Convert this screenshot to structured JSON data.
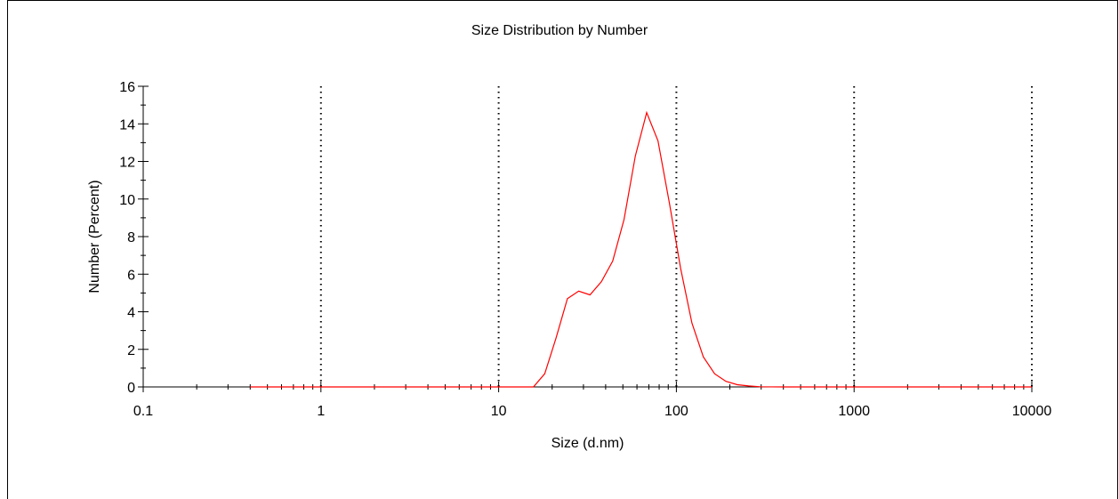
{
  "chart_data": {
    "type": "line",
    "title": "Size Distribution by Number",
    "xlabel": "Size (d.nm)",
    "ylabel": "Number (Percent)",
    "xscale": "log",
    "xlim": [
      0.1,
      10000
    ],
    "ylim": [
      0,
      16
    ],
    "x_ticks": [
      0.1,
      1,
      10,
      100,
      1000,
      10000
    ],
    "x_tick_labels": [
      "0.1",
      "1",
      "10",
      "100",
      "1000",
      "10000"
    ],
    "y_ticks": [
      0,
      2,
      4,
      6,
      8,
      10,
      12,
      14,
      16
    ],
    "y_tick_labels": [
      "0",
      "2",
      "4",
      "6",
      "8",
      "10",
      "12",
      "14",
      "16"
    ],
    "grid": "vertical dotted at decades",
    "series_color": "#ff0000",
    "series": [
      {
        "x": [
          0.4,
          1,
          5,
          10,
          15.69,
          18.17,
          21.04,
          24.36,
          28.21,
          32.67,
          37.84,
          43.82,
          50.75,
          58.77,
          68.06,
          78.82,
          91.28,
          105.7,
          122.4,
          141.8,
          164.2,
          190.1,
          220.2,
          255.0,
          295.3,
          400,
          1000,
          10000
        ],
        "y": [
          0,
          0,
          0,
          0,
          0,
          0.7,
          2.6,
          4.7,
          5.1,
          4.9,
          5.6,
          6.7,
          8.9,
          12.3,
          14.6,
          13.1,
          9.8,
          6.3,
          3.4,
          1.6,
          0.7,
          0.3,
          0.12,
          0.05,
          0.01,
          0,
          0,
          0
        ]
      }
    ]
  }
}
